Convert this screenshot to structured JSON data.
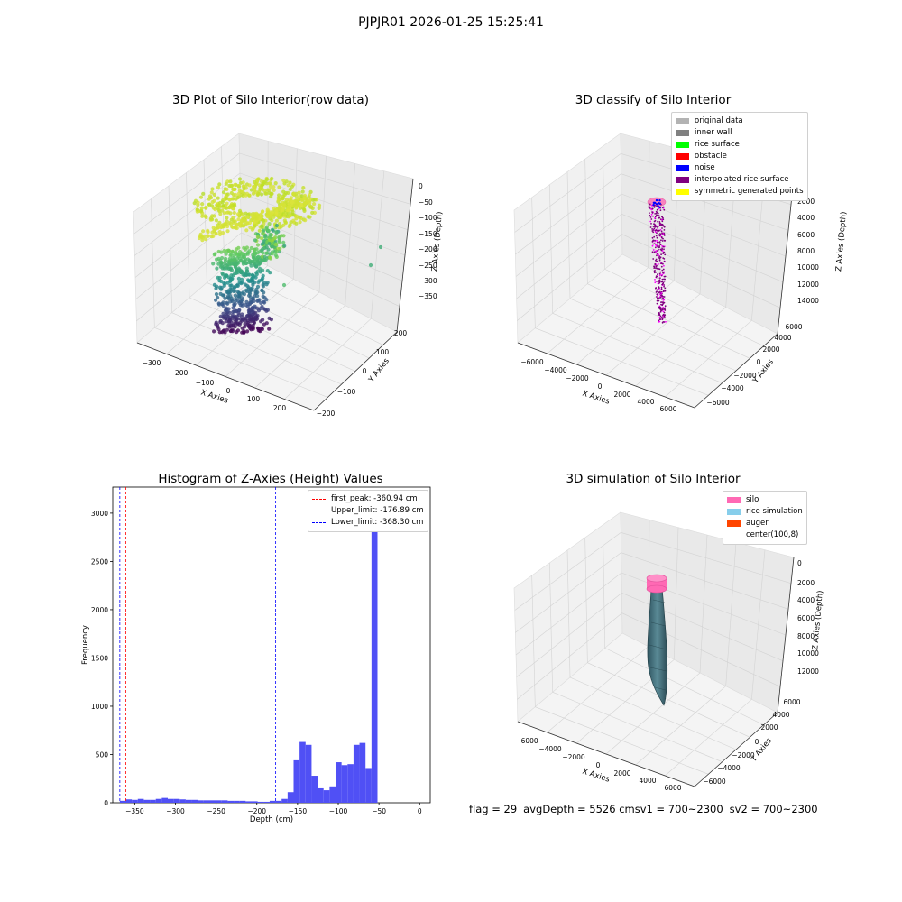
{
  "suptitle": "PJPJR01 2026-01-25 15:25:41",
  "footer": {
    "flag": "flag = 29",
    "avg": "avgDepth = 5526 cm",
    "sv1": "sv1 = 700~2300",
    "sv2": "sv2 = 700~2300"
  },
  "chart_data": [
    {
      "type": "scatter",
      "title": "3D Plot of Silo Interior(row data)",
      "xlabel": "X Axies",
      "ylabel": "Y Axies",
      "zlabel": "Z Axies (Depth)",
      "x_ticks": [
        "−300",
        "−200",
        "−100",
        "0",
        "100",
        "200"
      ],
      "y_ticks": [
        "−200",
        "−100",
        "0",
        "100",
        "200"
      ],
      "z_ticks": [
        "0",
        "−50",
        "−100",
        "−150",
        "−200",
        "−250",
        "−300",
        "−350"
      ],
      "colormap": "viridis"
    },
    {
      "type": "scatter",
      "title": "3D classify of Silo Interior",
      "xlabel": "X Axies",
      "ylabel": "Y Axies",
      "zlabel": "Z Axies (Depth)",
      "x_ticks": [
        "−6000",
        "−4000",
        "−2000",
        "0",
        "2000",
        "4000",
        "6000"
      ],
      "y_ticks": [
        "−6000",
        "−4000",
        "−2000",
        "0",
        "2000",
        "4000",
        "6000"
      ],
      "z_ticks": [
        "2000",
        "4000",
        "6000",
        "8000",
        "10000",
        "12000",
        "14000"
      ],
      "legend": [
        {
          "label": "original data",
          "color": "#b3b3b3"
        },
        {
          "label": "inner wall",
          "color": "#808080"
        },
        {
          "label": "rice surface",
          "color": "#00ff00"
        },
        {
          "label": "obstacle",
          "color": "#ff0000"
        },
        {
          "label": "noise",
          "color": "#0000ff"
        },
        {
          "label": "interpolated rice surface",
          "color": "#800080"
        },
        {
          "label": "symmetric generated points",
          "color": "#ffff00"
        }
      ]
    },
    {
      "type": "bar",
      "title": "Histogram of Z-Axies (Height) Values",
      "xlabel": "Depth (cm)",
      "ylabel": "Frequency",
      "xlim": [
        -377,
        13
      ],
      "ylim": [
        0,
        3270
      ],
      "x_ticks": [
        -350,
        -300,
        -250,
        -200,
        -150,
        -100,
        -50,
        0
      ],
      "x_tick_labels": [
        "−350",
        "−300",
        "−250",
        "−200",
        "−150",
        "−100",
        "−50",
        "0"
      ],
      "y_ticks": [
        0,
        500,
        1000,
        1500,
        2000,
        2500,
        3000
      ],
      "y_tick_labels": [
        "0",
        "500",
        "1000",
        "1500",
        "2000",
        "2500",
        "3000"
      ],
      "bin_width": 7.36,
      "bin_start": -368.3,
      "values": [
        20,
        35,
        30,
        40,
        30,
        30,
        40,
        50,
        40,
        40,
        35,
        30,
        30,
        25,
        25,
        25,
        25,
        25,
        20,
        20,
        20,
        15,
        15,
        10,
        10,
        20,
        20,
        40,
        110,
        440,
        630,
        600,
        280,
        150,
        130,
        170,
        420,
        390,
        400,
        600,
        620,
        360,
        3100
      ],
      "bar_color": "#5050f5",
      "lines": [
        {
          "label": "first_peak: -360.94 cm",
          "value": -360.94,
          "color": "#ff0000"
        },
        {
          "label": "Upper_limit: -176.89 cm",
          "value": -176.89,
          "color": "#0000ff"
        },
        {
          "label": "Lower_limit: -368.30 cm",
          "value": -368.3,
          "color": "#0000ff"
        }
      ],
      "legend_position": "top-right"
    },
    {
      "type": "area",
      "title": "3D simulation of Silo Interior",
      "xlabel": "X Axies",
      "ylabel": "Y Axies",
      "zlabel": "Z Axies (Depth)",
      "x_ticks": [
        "−6000",
        "−4000",
        "−2000",
        "0",
        "2000",
        "4000",
        "6000"
      ],
      "y_ticks": [
        "−6000",
        "−4000",
        "−2000",
        "0",
        "2000",
        "4000",
        "6000"
      ],
      "z_ticks": [
        "0",
        "2000",
        "4000",
        "6000",
        "8000",
        "10000",
        "12000"
      ],
      "legend": [
        {
          "label": "silo",
          "color": "#ff69b4"
        },
        {
          "label": "rice simulation",
          "color": "#87ceeb"
        },
        {
          "label": "auger",
          "color": "#ff4500"
        },
        {
          "label": "center(100,8)",
          "color": "#ffffff"
        }
      ]
    }
  ]
}
